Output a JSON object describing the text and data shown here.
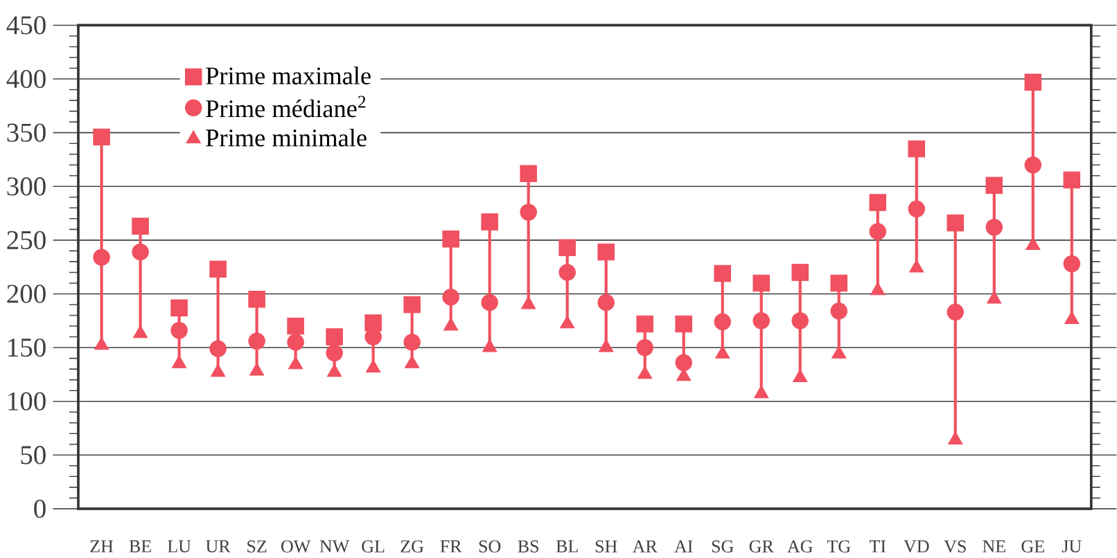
{
  "chart_data": {
    "type": "scatter",
    "categories": [
      "ZH",
      "BE",
      "LU",
      "UR",
      "SZ",
      "OW",
      "NW",
      "GL",
      "ZG",
      "FR",
      "SO",
      "BS",
      "BL",
      "SH",
      "AR",
      "AI",
      "SG",
      "GR",
      "AG",
      "TG",
      "TI",
      "VD",
      "VS",
      "NE",
      "GE",
      "JU"
    ],
    "series": [
      {
        "name": "Prime maximale",
        "color": "#f0505f",
        "marker": "square",
        "values": [
          346,
          263,
          187,
          223,
          195,
          170,
          160,
          173,
          190,
          251,
          267,
          312,
          243,
          239,
          172,
          172,
          219,
          210,
          220,
          210,
          285,
          335,
          266,
          301,
          397,
          306
        ]
      },
      {
        "name": "Prime médiane$^{2}$",
        "color": "#f0505f",
        "marker": "circle",
        "values": [
          234,
          239,
          166,
          149,
          156,
          155,
          145,
          160,
          155,
          197,
          192,
          276,
          220,
          192,
          150,
          136,
          174,
          175,
          175,
          184,
          258,
          279,
          183,
          262,
          320,
          228
        ]
      },
      {
        "name": "Prime minimale",
        "color": "#f0505f",
        "marker": "triangle",
        "values": [
          152,
          163,
          135,
          127,
          128,
          134,
          127,
          131,
          135,
          170,
          150,
          190,
          172,
          150,
          125,
          123,
          144,
          107,
          122,
          144,
          203,
          224,
          64,
          195,
          245,
          176
        ]
      }
    ],
    "ylim": [
      0,
      450
    ],
    "yticks": [
      0,
      50,
      100,
      150,
      200,
      250,
      300,
      350,
      400,
      450
    ],
    "grid": "y",
    "legend": "top left"
  }
}
